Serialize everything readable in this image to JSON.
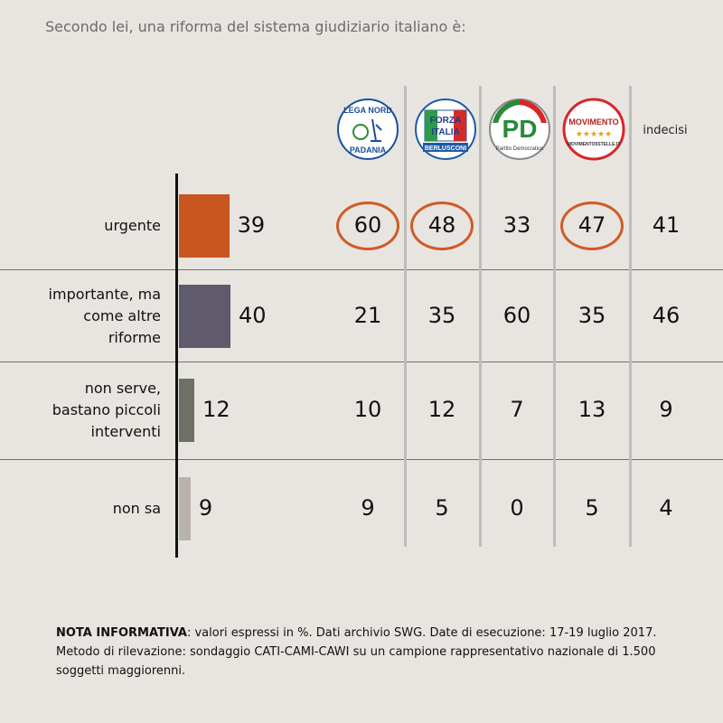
{
  "title": "Secondo lei, una riforma del sistema giudiziario italiano è:",
  "logos": [
    {
      "top": "LEGA NORD",
      "bottom": "PADANIA"
    },
    {
      "top": "FORZA",
      "middle": "ITALIA",
      "bottom": "BERLUSCONI"
    },
    {
      "top": "PD",
      "bottom": "Partito Democratico"
    },
    {
      "top": "MOVIMENTO",
      "bottom": "MOVIMENTO5STELLE.IT"
    }
  ],
  "indecisi_label": "indecisi",
  "chart_data": {
    "type": "bar",
    "categories": [
      "urgente",
      "importante, ma\ncome altre\nriforme",
      "non serve,\nbastano piccoli\ninterventi",
      "non sa"
    ],
    "values": [
      39,
      40,
      12,
      9
    ],
    "colors": [
      "#c9561e",
      "#5f5a6c",
      "#6c7065",
      "#bab3ad"
    ],
    "table": {
      "columns": [
        "Lega Nord Padania",
        "Forza Italia",
        "PD",
        "Movimento 5 Stelle",
        "indecisi"
      ],
      "rows": [
        [
          60,
          48,
          33,
          47,
          41
        ],
        [
          21,
          35,
          60,
          35,
          46
        ],
        [
          10,
          12,
          7,
          13,
          9
        ],
        [
          9,
          5,
          0,
          5,
          4
        ]
      ],
      "highlighted": [
        [
          0,
          0
        ],
        [
          0,
          1
        ],
        [
          0,
          3
        ]
      ]
    },
    "highlight_color": "#cf5b28"
  },
  "note": {
    "label": "NOTA INFORMATIVA",
    "text": ": valori espressi in %. Dati archivio SWG. Date di esecuzione: 17-19 luglio 2017. Metodo di rilevazione: sondaggio CATI-CAMI-CAWI su un campione rappresentativo nazionale di 1.500 soggetti maggiorenni."
  }
}
